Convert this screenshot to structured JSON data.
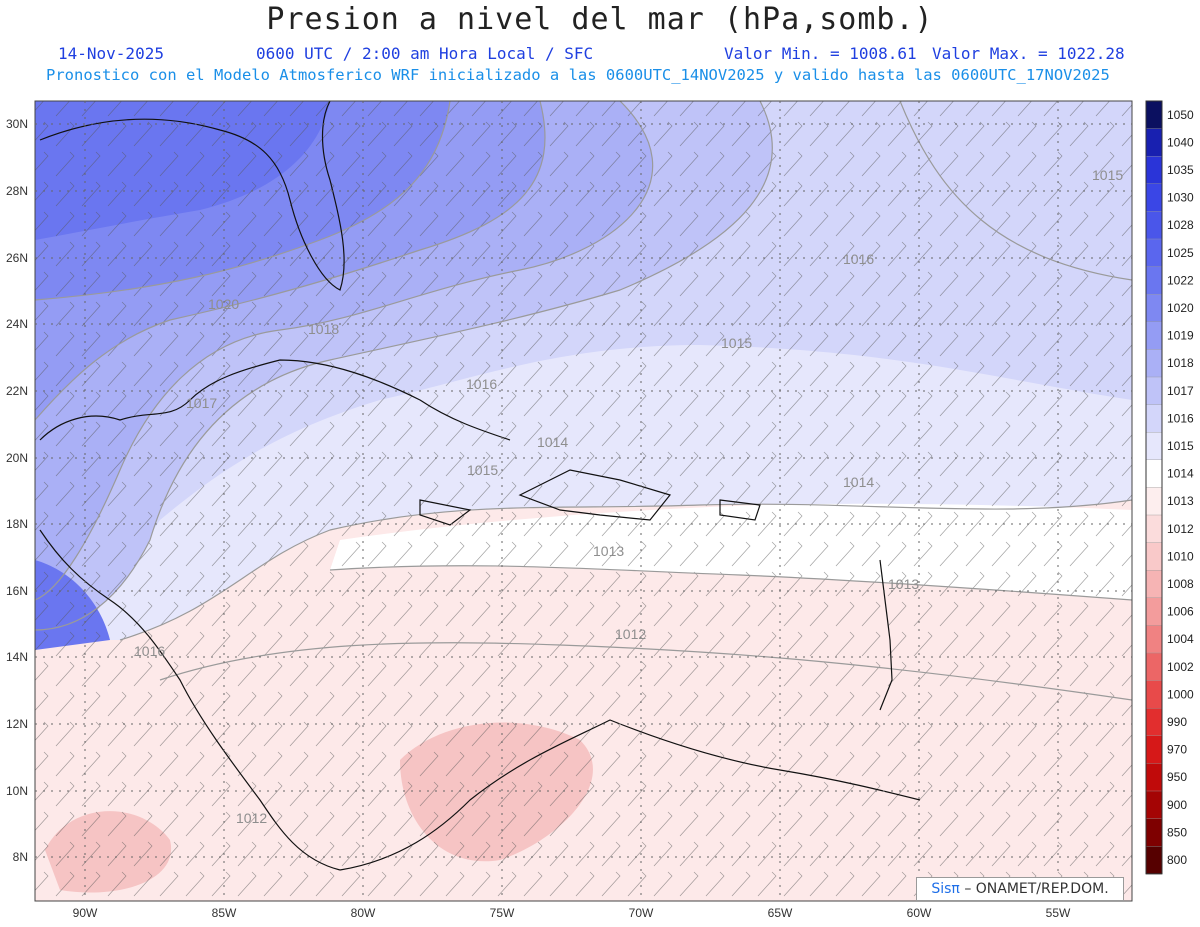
{
  "header": {
    "title": "Presion a nivel del mar (hPa,somb.)",
    "date": "14-Nov-2025",
    "time": "0600 UTC / 2:00 am Hora Local / SFC",
    "min": "Valor Min. = 1008.61",
    "max": "Valor Max. = 1022.28",
    "forecast_note": "Pronostico con el Modelo Atmosferico WRF inicializado a las 0600UTC_14NOV2025 y valido hasta las  0600UTC_17NOV2025"
  },
  "axes": {
    "lat_labels": [
      "30N",
      "28N",
      "26N",
      "24N",
      "22N",
      "20N",
      "18N",
      "16N",
      "14N",
      "12N",
      "10N",
      "8N"
    ],
    "lon_labels": [
      "90W",
      "85W",
      "80W",
      "75W",
      "70W",
      "65W",
      "60W",
      "55W"
    ]
  },
  "colorbar": {
    "labels": [
      "1050",
      "1040",
      "1035",
      "1030",
      "1028",
      "1025",
      "1022",
      "1020",
      "1019",
      "1018",
      "1017",
      "1016",
      "1015",
      "1014",
      "1013",
      "1012",
      "1010",
      "1008",
      "1006",
      "1004",
      "1002",
      "1000",
      "990",
      "970",
      "950",
      "900",
      "850",
      "800"
    ],
    "colors": [
      "#0b1060",
      "#1820b0",
      "#2a34d8",
      "#3a46e6",
      "#4a56ea",
      "#5a66ee",
      "#6a76f0",
      "#7e88f2",
      "#949cf4",
      "#aab0f6",
      "#bfc3f8",
      "#d3d6fa",
      "#e6e7fc",
      "#ffffff",
      "#fdeeee",
      "#fbdcdc",
      "#f9c9c9",
      "#f6b4b4",
      "#f39c9c",
      "#f08282",
      "#ec6666",
      "#e84a4a",
      "#e22e2e",
      "#d61818",
      "#c00a0a",
      "#a40404",
      "#7e0000",
      "#560000"
    ]
  },
  "contour_labels": [
    "1020",
    "1018",
    "1017",
    "1016",
    "1016",
    "1015",
    "1015",
    "1015",
    "1014",
    "1014",
    "1013",
    "1013",
    "1012",
    "1016",
    "1012"
  ],
  "credit": {
    "brand": "Sisπ",
    "text": "– ONAMET/REP.DOM."
  }
}
